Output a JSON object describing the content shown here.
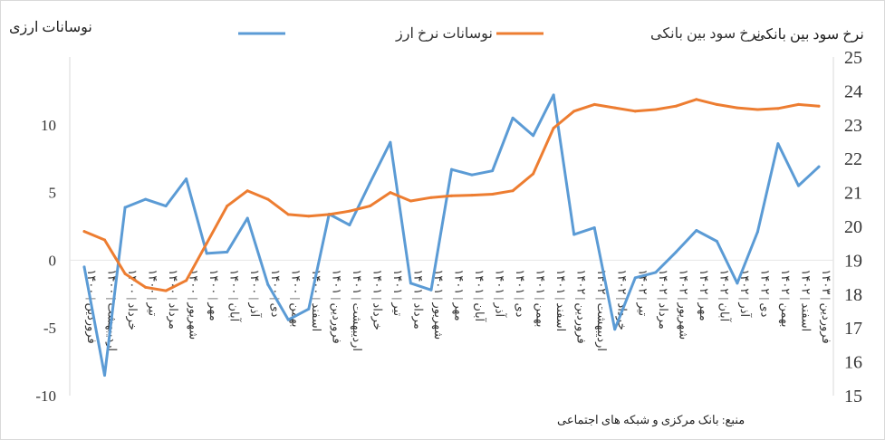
{
  "chart_data": {
    "type": "line",
    "left_axis_title": "نوسانات ارزی",
    "right_axis_title": "نرخ سود بین بانکی",
    "left_ylim": [
      -10,
      15
    ],
    "left_ticks": [
      -10,
      -5,
      0,
      5,
      10
    ],
    "right_ylim": [
      15,
      25
    ],
    "right_ticks": [
      15,
      16,
      17,
      18,
      19,
      20,
      21,
      22,
      23,
      24,
      25
    ],
    "grid": false,
    "legend_position": "top",
    "source": "منبع: بانک مرکزی و شبکه های اجتماعی",
    "categories": [
      "۱۴۰۰ | فروردین",
      "۱۴۰۰ | اردیبهشت",
      "۱۴۰۰ | خرداد",
      "۱۴۰۰ | تیر",
      "۱۴۰۰ | مرداد",
      "۱۴۰۰ | شهریور",
      "۱۴۰۰ | مهر",
      "۱۴۰۰ | آبان",
      "۱۴۰۰ | آذر",
      "۱۴۰۰ | دی",
      "۱۴۰۰ | بهمن",
      "۱۴۰۰ | اسفند",
      "۱۴۰۱ | فروردین",
      "۱۴۰۱ | اردیبهشت",
      "۱۴۰۱ | خرداد",
      "۱۴۰۱ | تیر",
      "۱۴۰۱ | مرداد",
      "۱۴۰۱ | شهریور",
      "۱۴۰۱ | مهر",
      "۱۴۰۱ | آبان",
      "۱۴۰۱ | آذر",
      "۱۴۰۱ | دی",
      "۱۴۰۱ | بهمن",
      "۱۴۰۱ | اسفند",
      "۱۴۰۲ | فروردین",
      "۱۴۰۲ | اردیبهشت",
      "۱۴۰۲ | خرداد",
      "۱۴۰۲ | تیر",
      "۱۴۰۲ | مرداد",
      "۱۴۰۲ | شهریور",
      "۱۴۰۲ | مهر",
      "۱۴۰۲ | آبان",
      "۱۴۰۲ | آذر",
      "۱۴۰۲ | دی",
      "۱۴۰۲ | بهمن",
      "۱۴۰۲ | اسفند",
      "۱۴۰۳ | فروردین"
    ],
    "series": [
      {
        "name": "نوسانات نرخ ارز",
        "axis": "left",
        "color": "#5b9bd5",
        "values": [
          -0.5,
          -8.5,
          3.9,
          4.5,
          4.0,
          6.0,
          0.5,
          0.6,
          3.1,
          -1.8,
          -4.4,
          -3.6,
          3.4,
          2.6,
          5.7,
          8.7,
          -1.7,
          -2.2,
          6.7,
          6.3,
          6.6,
          10.5,
          9.2,
          12.2,
          1.9,
          2.4,
          -5.1,
          -1.3,
          -0.9,
          0.6,
          2.2,
          1.4,
          -1.7,
          2.1,
          8.6,
          5.5,
          6.9
        ]
      },
      {
        "name": "نرخ سود بین بانکی",
        "axis": "right",
        "color": "#ed7d31",
        "values": [
          19.85,
          19.6,
          18.6,
          18.2,
          18.1,
          18.4,
          19.5,
          20.6,
          21.05,
          20.8,
          20.35,
          20.3,
          20.35,
          20.45,
          20.6,
          21.0,
          20.75,
          20.85,
          20.9,
          20.92,
          20.95,
          21.05,
          21.55,
          22.9,
          23.4,
          23.6,
          23.5,
          23.4,
          23.45,
          23.55,
          23.75,
          23.6,
          23.5,
          23.45,
          23.48,
          23.6,
          23.55
        ]
      }
    ]
  }
}
